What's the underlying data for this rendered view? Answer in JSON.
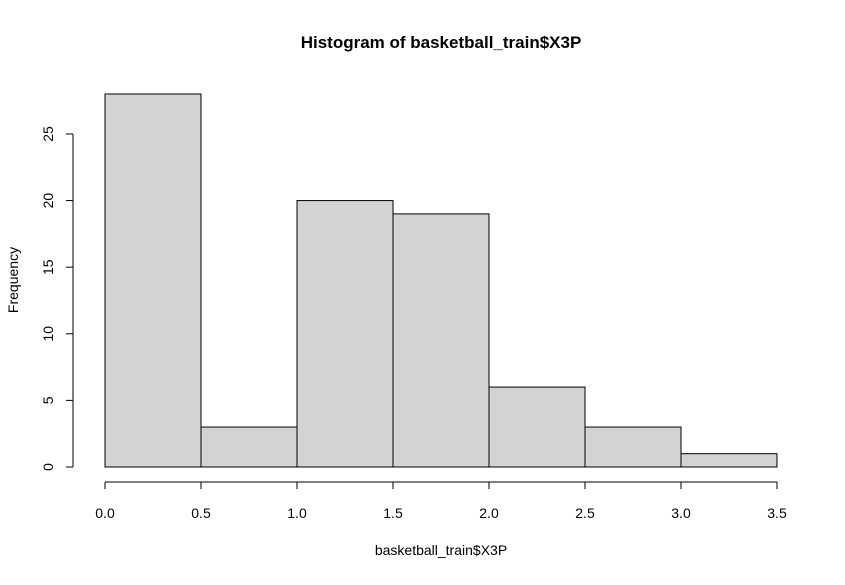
{
  "chart_data": {
    "type": "bar",
    "title": "Histogram of basketball_train$X3P",
    "xlabel": "basketball_train$X3P",
    "ylabel": "Frequency",
    "bins": [
      {
        "start": 0.0,
        "end": 0.5,
        "count": 28
      },
      {
        "start": 0.5,
        "end": 1.0,
        "count": 3
      },
      {
        "start": 1.0,
        "end": 1.5,
        "count": 20
      },
      {
        "start": 1.5,
        "end": 2.0,
        "count": 19
      },
      {
        "start": 2.0,
        "end": 2.5,
        "count": 6
      },
      {
        "start": 2.5,
        "end": 3.0,
        "count": 3
      },
      {
        "start": 3.0,
        "end": 3.5,
        "count": 1
      }
    ],
    "xlim": [
      0.0,
      3.5
    ],
    "ylim": [
      0,
      28
    ],
    "x_ticks": [
      "0.0",
      "0.5",
      "1.0",
      "1.5",
      "2.0",
      "2.5",
      "3.0",
      "3.5"
    ],
    "y_ticks": [
      "0",
      "5",
      "10",
      "15",
      "20",
      "25"
    ],
    "grid": false,
    "legend": "none",
    "colors": {
      "bar_fill": "#d3d3d3",
      "bar_stroke": "#000000",
      "axis": "#000000"
    }
  }
}
